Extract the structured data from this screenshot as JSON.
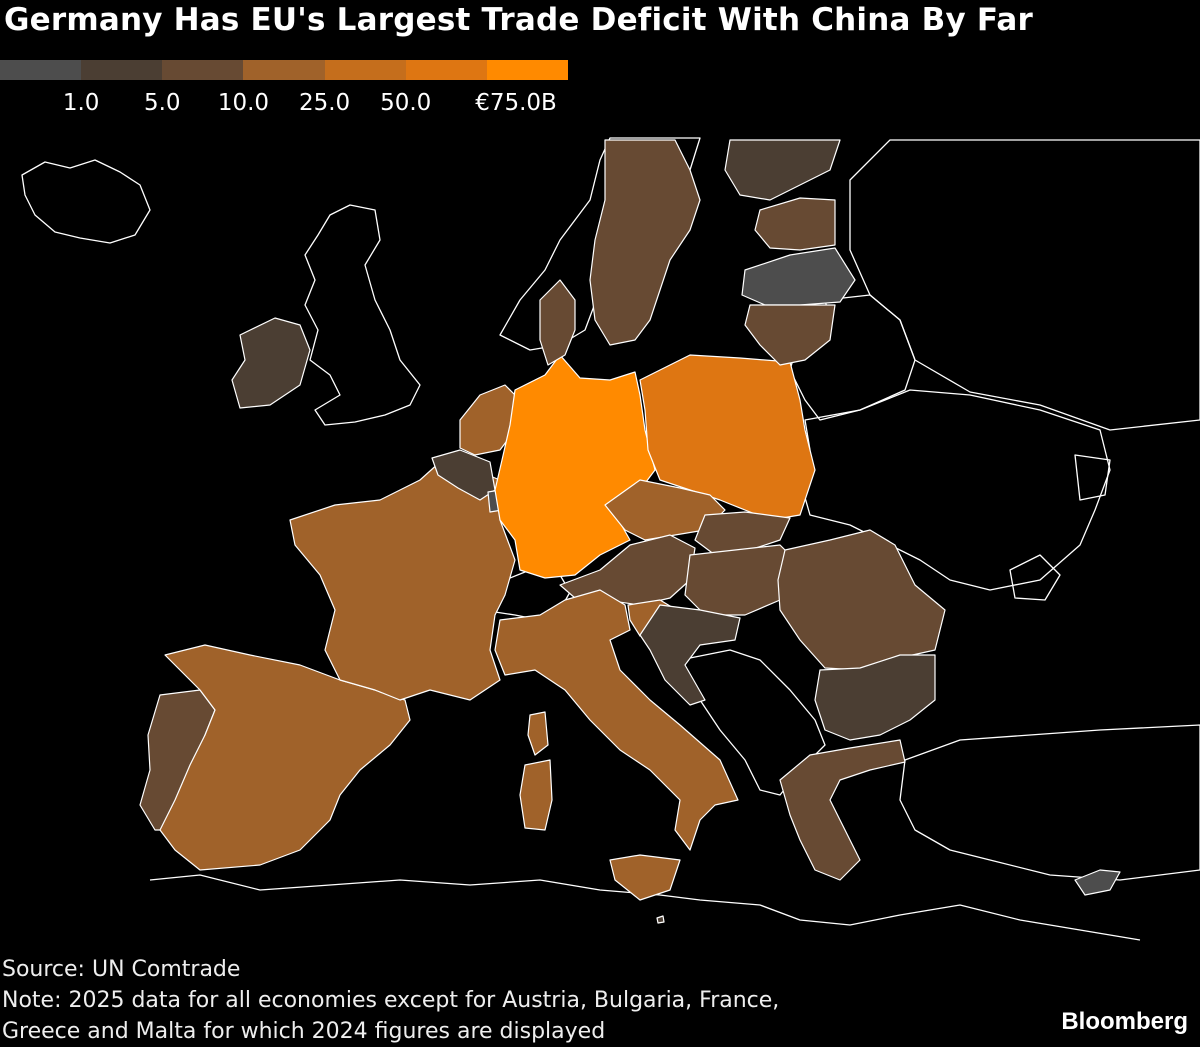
{
  "title": "Germany Has EU's Largest Trade Deficit With China By Far",
  "legend": {
    "colors": [
      "#4d4d4d",
      "#4b3e33",
      "#674a33",
      "#a0622a",
      "#c56e1c",
      "#de7612",
      "#ff8a00"
    ],
    "labels": [
      "1.0",
      "5.0",
      "10.0",
      "25.0",
      "50.0",
      "€75.0B"
    ]
  },
  "map": {
    "non_eu_color": "#000000",
    "border_color": "#ffffff",
    "countries": [
      {
        "name": "Germany",
        "bin": 6
      },
      {
        "name": "Poland",
        "bin": 5
      },
      {
        "name": "France",
        "bin": 3
      },
      {
        "name": "Spain",
        "bin": 3
      },
      {
        "name": "Italy",
        "bin": 3
      },
      {
        "name": "Netherlands",
        "bin": 3
      },
      {
        "name": "Czechia",
        "bin": 3
      },
      {
        "name": "Slovenia",
        "bin": 3
      },
      {
        "name": "Portugal",
        "bin": 2
      },
      {
        "name": "Sweden",
        "bin": 2
      },
      {
        "name": "Denmark",
        "bin": 2
      },
      {
        "name": "Austria",
        "bin": 2
      },
      {
        "name": "Slovakia",
        "bin": 2
      },
      {
        "name": "Hungary",
        "bin": 2
      },
      {
        "name": "Romania",
        "bin": 2
      },
      {
        "name": "Greece",
        "bin": 2
      },
      {
        "name": "Lithuania",
        "bin": 2
      },
      {
        "name": "Estonia",
        "bin": 2
      },
      {
        "name": "Belgium",
        "bin": 1
      },
      {
        "name": "Ireland",
        "bin": 1
      },
      {
        "name": "Finland",
        "bin": 1
      },
      {
        "name": "Bulgaria",
        "bin": 1
      },
      {
        "name": "Croatia",
        "bin": 1
      },
      {
        "name": "Latvia",
        "bin": 0
      },
      {
        "name": "Luxembourg",
        "bin": 0
      },
      {
        "name": "Cyprus",
        "bin": 0
      },
      {
        "name": "Malta",
        "bin": 1
      }
    ]
  },
  "source": "Source: UN Comtrade",
  "note_line1": "Note: 2025 data for all economies except for Austria, Bulgaria, France,",
  "note_line2": "Greece and Malta for which 2024 figures are displayed",
  "brand": "Bloomberg"
}
